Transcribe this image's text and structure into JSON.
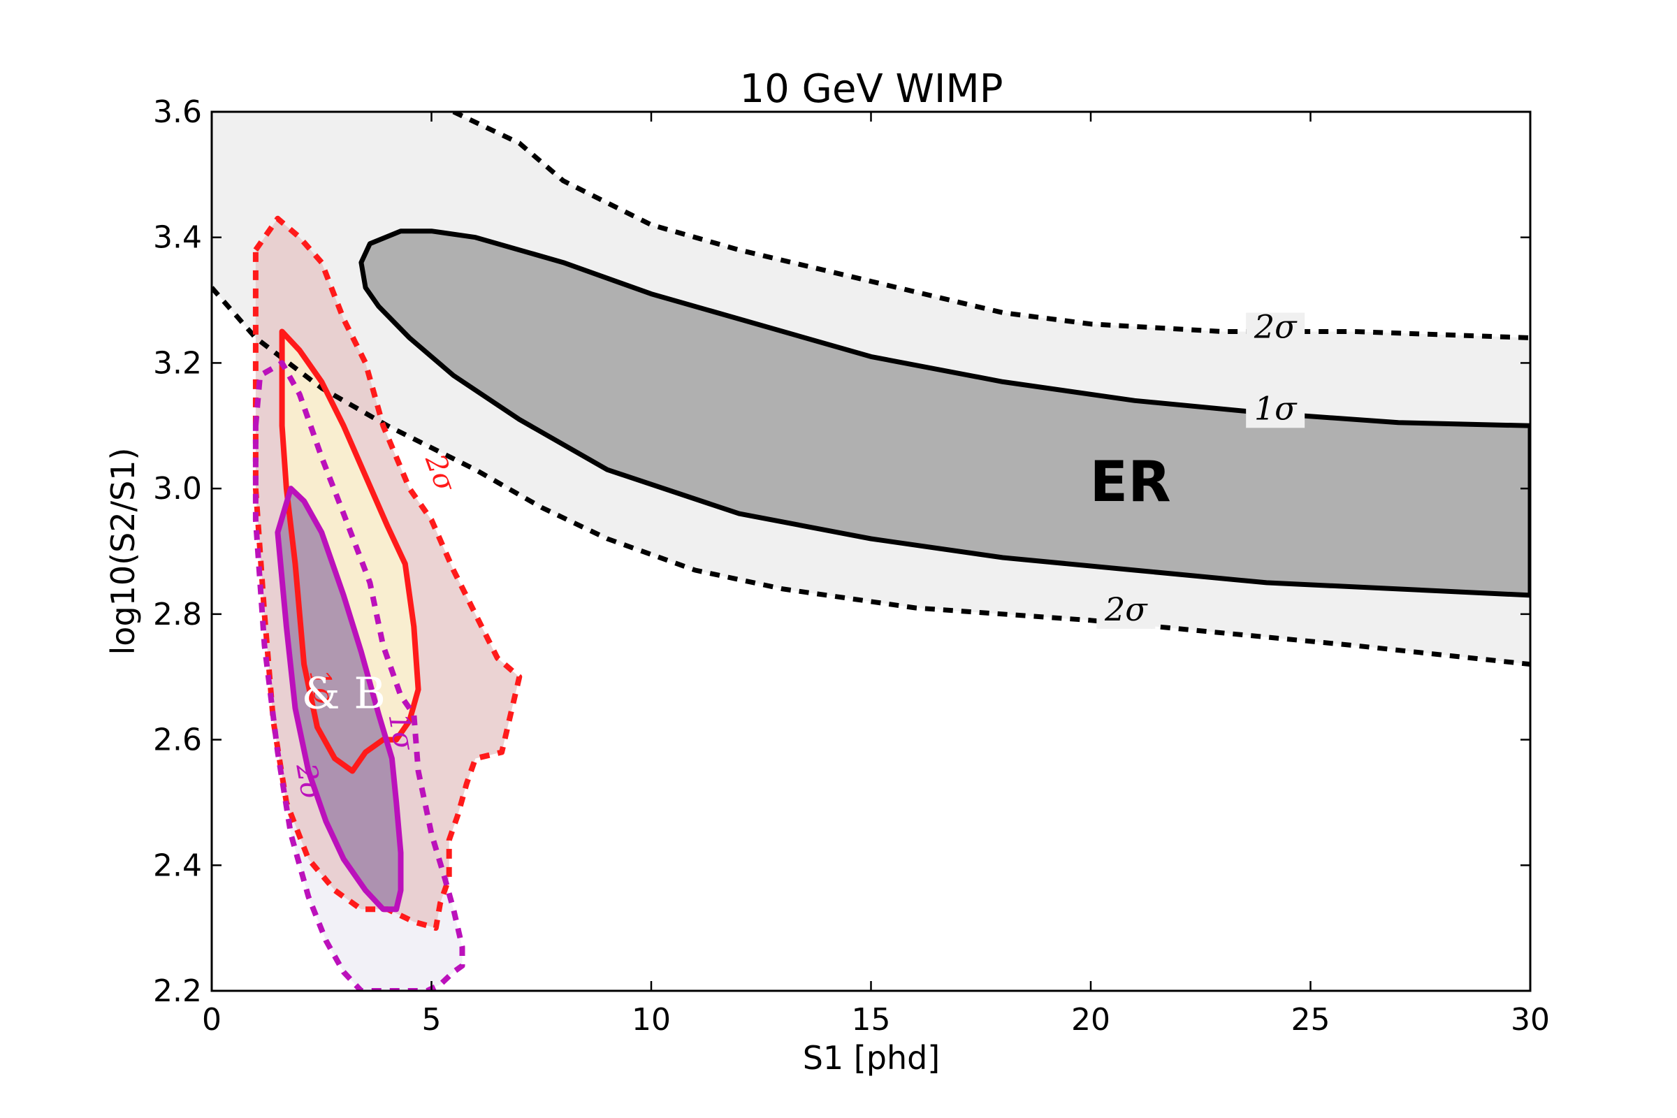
{
  "chart_data": {
    "type": "contour",
    "title": "10 GeV WIMP",
    "xlabel": "S1 [phd]",
    "ylabel": "log10(S2/S1)",
    "xlim": [
      0,
      30
    ],
    "ylim": [
      2.2,
      3.6
    ],
    "xticks": [
      0,
      5,
      10,
      15,
      20,
      25,
      30
    ],
    "yticks": [
      2.2,
      2.4,
      2.6,
      2.8,
      3.0,
      3.2,
      3.4,
      3.6
    ],
    "grid": false,
    "colors": {
      "er_1sigma_fill": "#b0b0b0",
      "er_2sigma_fill": "#f0f0f0",
      "er_line": "#000000",
      "red_2sigma_fill": "#e6c8c8",
      "red_1sigma_fill": "#fbf2cf",
      "red_line": "#ff1a1a",
      "magenta_2sigma_fill": "#f1f0f6",
      "magenta_1sigma_fill": "#9d82a8",
      "magenta_line": "#bb11bb"
    },
    "region_label": "ER",
    "contour_labels": [
      {
        "text": "2σ",
        "x": 24.2,
        "y": 3.24
      },
      {
        "text": "1σ",
        "x": 24.2,
        "y": 3.11
      },
      {
        "text": "2σ",
        "x": 20.8,
        "y": 2.79
      },
      {
        "text": "2σ",
        "x": 5.0,
        "y": 3.02
      },
      {
        "text": "1σ",
        "x": 2.3,
        "y": 2.68
      },
      {
        "text": "1σ",
        "x": 4.1,
        "y": 2.61
      },
      {
        "text": "2σ",
        "x": 2.0,
        "y": 2.53
      }
    ],
    "partial_label": "& B",
    "series": [
      {
        "style": "solid",
        "color": "#000000",
        "role": "er-1sigma",
        "points": [
          [
            3.4,
            3.36
          ],
          [
            3.6,
            3.39
          ],
          [
            4.3,
            3.41
          ],
          [
            5.0,
            3.41
          ],
          [
            6.0,
            3.4
          ],
          [
            8.0,
            3.36
          ],
          [
            10.0,
            3.31
          ],
          [
            12.0,
            3.27
          ],
          [
            15.0,
            3.21
          ],
          [
            18.0,
            3.17
          ],
          [
            21.0,
            3.14
          ],
          [
            24.0,
            3.12
          ],
          [
            27.0,
            3.105
          ],
          [
            30.0,
            3.1
          ],
          [
            30.0,
            2.83
          ],
          [
            27.0,
            2.84
          ],
          [
            24.0,
            2.85
          ],
          [
            21.0,
            2.87
          ],
          [
            18.0,
            2.89
          ],
          [
            15.0,
            2.92
          ],
          [
            12.0,
            2.96
          ],
          [
            9.0,
            3.03
          ],
          [
            7.0,
            3.11
          ],
          [
            5.5,
            3.18
          ],
          [
            4.5,
            3.24
          ],
          [
            3.8,
            3.29
          ],
          [
            3.5,
            3.32
          ],
          [
            3.4,
            3.36
          ]
        ]
      },
      {
        "style": "dashed",
        "color": "#000000",
        "role": "er-2sigma-upper",
        "points": [
          [
            5.5,
            3.6
          ],
          [
            7.0,
            3.55
          ],
          [
            8.0,
            3.49
          ],
          [
            10.0,
            3.42
          ],
          [
            12.0,
            3.38
          ],
          [
            15.0,
            3.33
          ],
          [
            18.0,
            3.28
          ],
          [
            20.0,
            3.262
          ],
          [
            23.0,
            3.25
          ],
          [
            26.0,
            3.25
          ],
          [
            30.0,
            3.24
          ]
        ]
      },
      {
        "style": "dashed",
        "color": "#000000",
        "role": "er-2sigma-lower",
        "points": [
          [
            0.0,
            3.32
          ],
          [
            1.0,
            3.24
          ],
          [
            2.5,
            3.16
          ],
          [
            4.0,
            3.1
          ],
          [
            6.0,
            3.03
          ],
          [
            7.5,
            2.97
          ],
          [
            9.0,
            2.92
          ],
          [
            11.0,
            2.87
          ],
          [
            13.0,
            2.84
          ],
          [
            16.0,
            2.81
          ],
          [
            20.0,
            2.79
          ],
          [
            23.0,
            2.77
          ],
          [
            26.0,
            2.75
          ],
          [
            30.0,
            2.72
          ]
        ]
      },
      {
        "style": "dashed",
        "color": "#ff1a1a",
        "role": "red-2sigma",
        "points": [
          [
            1.0,
            3.38
          ],
          [
            1.5,
            3.43
          ],
          [
            2.0,
            3.4
          ],
          [
            2.5,
            3.36
          ],
          [
            3.0,
            3.27
          ],
          [
            3.5,
            3.2
          ],
          [
            3.9,
            3.1
          ],
          [
            4.5,
            3.0
          ],
          [
            5.0,
            2.95
          ],
          [
            5.5,
            2.87
          ],
          [
            6.0,
            2.8
          ],
          [
            6.5,
            2.73
          ],
          [
            7.0,
            2.7
          ],
          [
            6.8,
            2.64
          ],
          [
            6.6,
            2.58
          ],
          [
            6.0,
            2.57
          ],
          [
            5.8,
            2.53
          ],
          [
            5.6,
            2.48
          ],
          [
            5.4,
            2.44
          ],
          [
            5.4,
            2.38
          ],
          [
            5.2,
            2.34
          ],
          [
            5.1,
            2.3
          ],
          [
            4.6,
            2.31
          ],
          [
            4.0,
            2.33
          ],
          [
            3.4,
            2.33
          ],
          [
            2.8,
            2.36
          ],
          [
            2.2,
            2.41
          ],
          [
            1.7,
            2.5
          ],
          [
            1.4,
            2.63
          ],
          [
            1.2,
            2.8
          ],
          [
            1.0,
            3.0
          ],
          [
            1.0,
            3.2
          ],
          [
            1.0,
            3.38
          ]
        ]
      },
      {
        "style": "solid",
        "color": "#ff1a1a",
        "role": "red-1sigma",
        "points": [
          [
            1.6,
            3.2
          ],
          [
            1.6,
            3.25
          ],
          [
            2.0,
            3.22
          ],
          [
            2.5,
            3.17
          ],
          [
            3.0,
            3.1
          ],
          [
            3.5,
            3.02
          ],
          [
            4.0,
            2.94
          ],
          [
            4.4,
            2.88
          ],
          [
            4.6,
            2.78
          ],
          [
            4.7,
            2.68
          ],
          [
            4.5,
            2.63
          ],
          [
            4.2,
            2.6
          ],
          [
            3.9,
            2.6
          ],
          [
            3.5,
            2.58
          ],
          [
            3.2,
            2.55
          ],
          [
            2.8,
            2.57
          ],
          [
            2.4,
            2.62
          ],
          [
            2.1,
            2.72
          ],
          [
            1.9,
            2.88
          ],
          [
            1.7,
            3.0
          ],
          [
            1.6,
            3.1
          ],
          [
            1.6,
            3.2
          ]
        ]
      },
      {
        "style": "dashed",
        "color": "#bb11bb",
        "role": "magenta-2sigma",
        "points": [
          [
            1.0,
            3.1
          ],
          [
            1.1,
            3.18
          ],
          [
            1.6,
            3.2
          ],
          [
            2.0,
            3.15
          ],
          [
            2.5,
            3.05
          ],
          [
            3.0,
            2.96
          ],
          [
            3.6,
            2.85
          ],
          [
            3.9,
            2.75
          ],
          [
            4.3,
            2.67
          ],
          [
            4.6,
            2.64
          ],
          [
            4.7,
            2.55
          ],
          [
            5.0,
            2.45
          ],
          [
            5.3,
            2.38
          ],
          [
            5.5,
            2.33
          ],
          [
            5.7,
            2.27
          ],
          [
            5.7,
            2.24
          ],
          [
            5.5,
            2.23
          ],
          [
            5.2,
            2.21
          ],
          [
            4.9,
            2.2
          ],
          [
            3.4,
            2.2
          ],
          [
            3.0,
            2.23
          ],
          [
            2.6,
            2.28
          ],
          [
            2.2,
            2.35
          ],
          [
            1.8,
            2.45
          ],
          [
            1.5,
            2.58
          ],
          [
            1.2,
            2.75
          ],
          [
            1.0,
            2.95
          ],
          [
            1.0,
            3.1
          ]
        ]
      },
      {
        "style": "solid",
        "color": "#bb11bb",
        "role": "magenta-1sigma",
        "points": [
          [
            1.5,
            2.93
          ],
          [
            1.8,
            3.0
          ],
          [
            2.1,
            2.98
          ],
          [
            2.5,
            2.93
          ],
          [
            3.0,
            2.83
          ],
          [
            3.4,
            2.74
          ],
          [
            3.8,
            2.64
          ],
          [
            4.1,
            2.57
          ],
          [
            4.2,
            2.5
          ],
          [
            4.3,
            2.42
          ],
          [
            4.3,
            2.36
          ],
          [
            4.2,
            2.33
          ],
          [
            3.9,
            2.33
          ],
          [
            3.5,
            2.36
          ],
          [
            3.0,
            2.41
          ],
          [
            2.6,
            2.47
          ],
          [
            2.2,
            2.55
          ],
          [
            1.9,
            2.65
          ],
          [
            1.7,
            2.78
          ],
          [
            1.5,
            2.93
          ]
        ]
      }
    ]
  }
}
